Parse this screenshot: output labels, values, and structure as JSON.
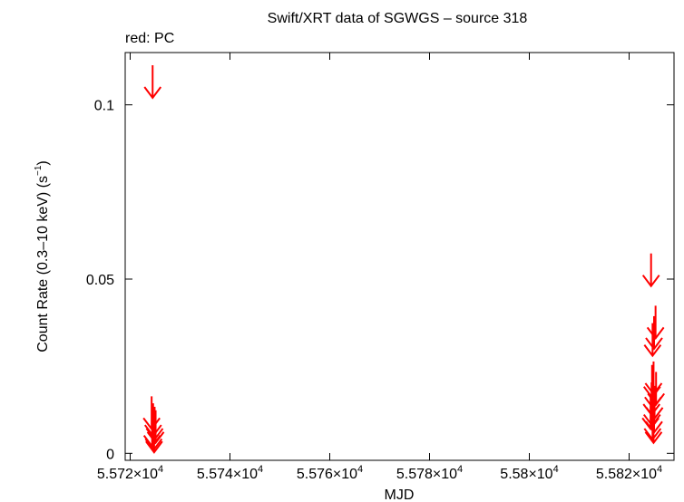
{
  "chart_data": {
    "type": "scatter",
    "title": "Swift/XRT data of SGWGS – source 318",
    "subtitle": "red: PC",
    "xlabel": "MJD",
    "ylabel": "Count Rate (0.3–10 keV) (s",
    "ylabel_sup": "−1",
    "ylabel_end": ")",
    "xlim": [
      55719,
      55829
    ],
    "ylim": [
      -0.002,
      0.115
    ],
    "x_ticks": [
      {
        "value": 55720,
        "mant": "5.572×10",
        "exp": "4"
      },
      {
        "value": 55740,
        "mant": "5.574×10",
        "exp": "4"
      },
      {
        "value": 55760,
        "mant": "5.576×10",
        "exp": "4"
      },
      {
        "value": 55780,
        "mant": "5.578×10",
        "exp": "4"
      },
      {
        "value": 55800,
        "mant": "5.58×10",
        "exp": "4"
      },
      {
        "value": 55820,
        "mant": "5.582×10",
        "exp": "4"
      }
    ],
    "y_ticks": [
      {
        "value": 0,
        "label": "0"
      },
      {
        "value": 0.05,
        "label": "0.05"
      },
      {
        "value": 0.1,
        "label": "0.1"
      }
    ],
    "series": [
      {
        "color": "#ff0000",
        "marker": "upper-limit-arrow",
        "points": [
          {
            "x": 55724.5,
            "y": 0.102
          },
          {
            "x": 55724.3,
            "y": 0.007
          },
          {
            "x": 55724.6,
            "y": 0.005
          },
          {
            "x": 55724.9,
            "y": 0.004
          },
          {
            "x": 55724.4,
            "y": 0.002
          },
          {
            "x": 55725.1,
            "y": 0.003
          },
          {
            "x": 55724.7,
            "y": 0.001
          },
          {
            "x": 55724.8,
            "y": 0.0003
          },
          {
            "x": 55824.4,
            "y": 0.048
          },
          {
            "x": 55825.3,
            "y": 0.033
          },
          {
            "x": 55825.0,
            "y": 0.03
          },
          {
            "x": 55824.7,
            "y": 0.028
          },
          {
            "x": 55824.9,
            "y": 0.017
          },
          {
            "x": 55824.6,
            "y": 0.016
          },
          {
            "x": 55825.4,
            "y": 0.014
          },
          {
            "x": 55824.8,
            "y": 0.013
          },
          {
            "x": 55824.5,
            "y": 0.011
          },
          {
            "x": 55825.1,
            "y": 0.01
          },
          {
            "x": 55824.6,
            "y": 0.008
          },
          {
            "x": 55824.3,
            "y": 0.007
          },
          {
            "x": 55825.0,
            "y": 0.006
          },
          {
            "x": 55824.7,
            "y": 0.004
          },
          {
            "x": 55824.9,
            "y": 0.003
          }
        ]
      }
    ]
  }
}
